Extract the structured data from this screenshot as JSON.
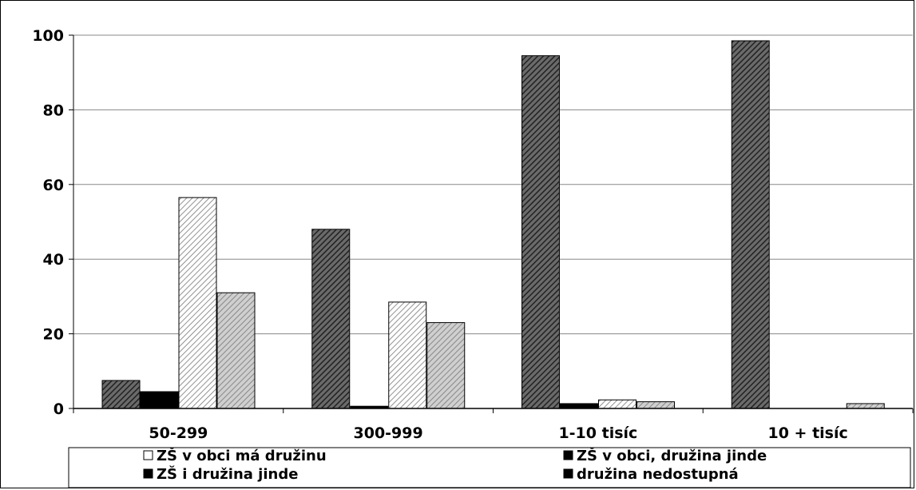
{
  "chart_data": {
    "type": "bar",
    "categories": [
      "50-299",
      "300-999",
      "1-10  tisíc",
      "10 +  tisíc"
    ],
    "ylim": [
      0,
      100
    ],
    "yticks": [
      0,
      20,
      40,
      60,
      80,
      100
    ],
    "grid": true,
    "legend_position": "bottom",
    "series": [
      {
        "name": "ZŠ v obci má družinu",
        "values": [
          7.5,
          48,
          94.5,
          98.5
        ],
        "color": "#3a3a3a",
        "pattern": "dark-diagonal"
      },
      {
        "name": "ZŠ v obci,  družina jinde",
        "values": [
          4.5,
          0.6,
          1.3,
          0
        ],
        "color": "#000000",
        "pattern": "solid"
      },
      {
        "name": "ZŠ i družina jinde",
        "values": [
          56.5,
          28.5,
          2.3,
          0
        ],
        "color": "#ffffff",
        "pattern": "light-diagonal"
      },
      {
        "name": "družina nedostupná",
        "values": [
          31,
          23,
          1.8,
          1.3
        ],
        "color": "#9a9a9a",
        "pattern": "grey-diagonal"
      }
    ]
  }
}
